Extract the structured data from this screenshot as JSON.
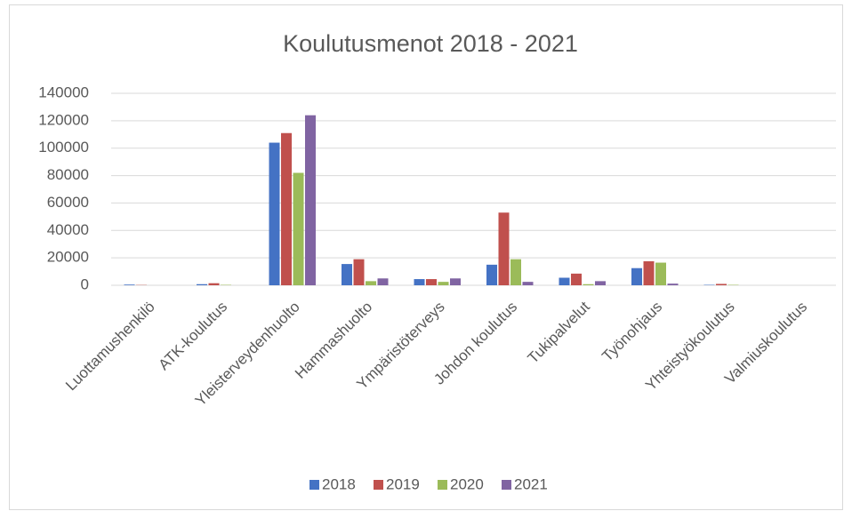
{
  "chart_data": {
    "type": "bar",
    "title": "Koulutusmenot 2018 - 2021",
    "categories": [
      "Luottamushenkilö",
      "ATK-koulutus",
      "Yleisterveydenhuolto",
      "Hammashuolto",
      "Ympäristöterveys",
      "Johdon koulutus",
      "Tukipalvelut",
      "Työnohjaus",
      "Yhteistyökoulutus",
      "Valmiuskoulutus"
    ],
    "series": [
      {
        "name": "2018",
        "color": "#4472c4",
        "values": [
          500,
          800,
          104000,
          15500,
          4500,
          15000,
          5500,
          12500,
          300,
          0
        ]
      },
      {
        "name": "2019",
        "color": "#c0504d",
        "values": [
          200,
          1500,
          111000,
          19000,
          4500,
          53000,
          8500,
          17500,
          1000,
          0
        ]
      },
      {
        "name": "2020",
        "color": "#9bbb59",
        "values": [
          0,
          300,
          82000,
          3000,
          2500,
          19000,
          800,
          16500,
          300,
          0
        ]
      },
      {
        "name": "2021",
        "color": "#8064a2",
        "values": [
          0,
          0,
          124000,
          5000,
          5000,
          2500,
          3000,
          1200,
          0,
          0
        ]
      }
    ],
    "ylim": [
      0,
      140000
    ],
    "yticks": [
      0,
      20000,
      40000,
      60000,
      80000,
      100000,
      120000,
      140000
    ],
    "grid": true,
    "legend": "bottom"
  }
}
